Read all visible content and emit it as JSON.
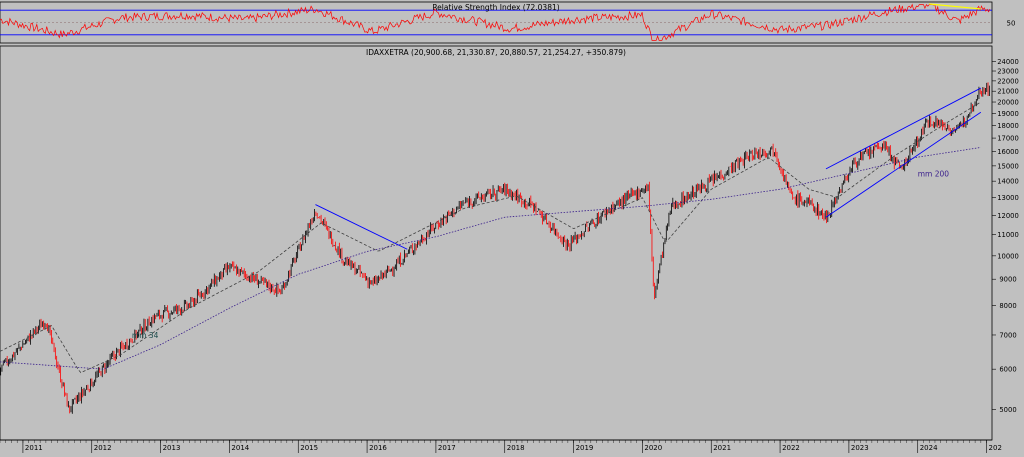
{
  "colors": {
    "background": "#c0c0c0",
    "bull_candle": "#000000",
    "bear_candle": "#ff0000",
    "rsi_line": "#ff0000",
    "ma_short": "#404040",
    "ma_long": "#3a1f8c",
    "trendline": "#0000ff",
    "rsi_trendline": "#ffff00",
    "frame": "#000000"
  },
  "chart_data": [
    {
      "type": "line",
      "title": "Relative Strength Index (72.0381)",
      "ylim": [
        20,
        80
      ],
      "y_ticks": [
        50
      ],
      "bands": [
        70,
        30
      ],
      "x": [
        "2010-09",
        "2011-08",
        "2012-06",
        "2013-05",
        "2014-04",
        "2015-04",
        "2016-02",
        "2017-01",
        "2018-02",
        "2019-01",
        "2020-01",
        "2020-03",
        "2021-01",
        "2022-01",
        "2022-09",
        "2023-07",
        "2024-03",
        "2024-08",
        "2024-12"
      ],
      "values": [
        55,
        30,
        58,
        62,
        55,
        72,
        35,
        66,
        40,
        55,
        62,
        18,
        64,
        38,
        45,
        67,
        80,
        52,
        72
      ],
      "annotations": [
        {
          "type": "trendline",
          "from": [
            "2024-03",
            80
          ],
          "to": [
            "2024-12",
            72
          ]
        }
      ]
    },
    {
      "type": "candlestick",
      "title": "IDAXXETRA (20,900.68, 21,330.87, 20,880.57, 21,254.27, +350.879)",
      "x_ticks": [
        "2011",
        "2012",
        "2013",
        "2014",
        "2015",
        "2016",
        "2017",
        "2018",
        "2019",
        "2020",
        "2021",
        "2022",
        "2023",
        "2024",
        "202"
      ],
      "y_ticks": [
        5000,
        6000,
        7000,
        8000,
        9000,
        10000,
        11000,
        12000,
        13000,
        14000,
        15000,
        16000,
        17000,
        18000,
        19000,
        20000,
        21000,
        22000,
        23000,
        24000
      ],
      "y_scale": "log",
      "ylim": [
        4400,
        24500
      ],
      "price_path": {
        "x": [
          "2010-09",
          "2011-05",
          "2011-09",
          "2012-05",
          "2012-12",
          "2013-06",
          "2014-01",
          "2014-10",
          "2015-04",
          "2015-09",
          "2016-02",
          "2016-06",
          "2017-01",
          "2017-06",
          "2018-01",
          "2018-06",
          "2018-12",
          "2019-07",
          "2019-12",
          "2020-02",
          "2020-03",
          "2020-06",
          "2021-01",
          "2021-08",
          "2021-12",
          "2022-03",
          "2022-06",
          "2022-09",
          "2023-02",
          "2023-07",
          "2023-10",
          "2024-03",
          "2024-08",
          "2024-12"
        ],
        "close": [
          6000,
          7500,
          5000,
          6400,
          7600,
          8000,
          9500,
          8500,
          12300,
          9800,
          8800,
          9600,
          11500,
          12700,
          13500,
          12500,
          10500,
          12300,
          13300,
          13700,
          8300,
          12500,
          14000,
          15800,
          16200,
          13000,
          12700,
          11900,
          15300,
          16500,
          14700,
          18500,
          17500,
          21254
        ]
      },
      "series": [
        {
          "name": "mm 34",
          "style": "dashed",
          "x": [
            "2010-09",
            "2011-06",
            "2011-11",
            "2012-06",
            "2013-06",
            "2014-06",
            "2015-05",
            "2016-03",
            "2017-06",
            "2018-03",
            "2019-01",
            "2020-01",
            "2020-05",
            "2021-01",
            "2021-11",
            "2022-06",
            "2022-11",
            "2023-09",
            "2024-06",
            "2024-12"
          ],
          "values": [
            6500,
            7300,
            5900,
            6400,
            7900,
            9300,
            11600,
            10200,
            12400,
            13100,
            11300,
            13000,
            10600,
            13500,
            15600,
            13500,
            13000,
            15700,
            18200,
            20000
          ]
        },
        {
          "name": "mm 200",
          "style": "dotted",
          "x": [
            "2010-09",
            "2011-06",
            "2012-03",
            "2013-01",
            "2014-01",
            "2015-01",
            "2016-01",
            "2017-01",
            "2018-01",
            "2019-01",
            "2020-01",
            "2021-01",
            "2022-01",
            "2023-01",
            "2024-01",
            "2024-12"
          ],
          "values": [
            6200,
            6100,
            6000,
            6700,
            7900,
            9200,
            10200,
            10900,
            11900,
            12200,
            12500,
            12900,
            13500,
            14500,
            15600,
            16300
          ]
        }
      ],
      "labels": [
        {
          "text": "mm 34",
          "x": "2012-08",
          "y": 6900
        },
        {
          "text": "mm 200",
          "x": "2024-01",
          "y": 14300
        }
      ],
      "annotations": [
        {
          "type": "trendline",
          "from": [
            "2015-04",
            12600
          ],
          "to": [
            "2016-08",
            10300
          ]
        },
        {
          "type": "trendline",
          "from": [
            "2022-09",
            14800
          ],
          "to": [
            "2024-12",
            21300
          ]
        },
        {
          "type": "trendline",
          "from": [
            "2022-09",
            11900
          ],
          "to": [
            "2024-12",
            19100
          ]
        }
      ]
    }
  ]
}
